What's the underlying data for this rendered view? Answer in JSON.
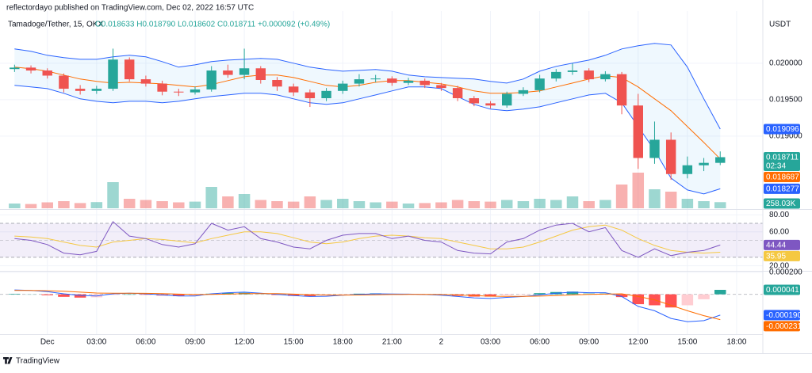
{
  "header": {
    "publisher": "reflectordayo published on TradingView.com, Dec 02, 2022 16:57 UTC",
    "symbol": "Tamadoge/Tether, 15, OKX",
    "ohlc": "O0.018633 H0.018790 L0.018602 C0.018711 +0.000092 (+0.49%)"
  },
  "footer": "TradingView",
  "chart_data": [
    {
      "type": "candlestick",
      "axis_label": "USDT",
      "xlim": [
        -0.5,
        45.5
      ],
      "xticks": [
        {
          "value": 2,
          "label": "Dec"
        },
        {
          "value": 5,
          "label": "03:00"
        },
        {
          "value": 8,
          "label": "06:00"
        },
        {
          "value": 11,
          "label": "09:00"
        },
        {
          "value": 14,
          "label": "12:00"
        },
        {
          "value": 17,
          "label": "15:00"
        },
        {
          "value": 20,
          "label": "18:00"
        },
        {
          "value": 23,
          "label": "21:00"
        },
        {
          "value": 26,
          "label": "2"
        },
        {
          "value": 29,
          "label": "03:00"
        },
        {
          "value": 32,
          "label": "06:00"
        },
        {
          "value": 35,
          "label": "09:00"
        },
        {
          "value": 38,
          "label": "12:00"
        },
        {
          "value": 41,
          "label": "15:00"
        },
        {
          "value": 44,
          "label": "18:00"
        }
      ],
      "ylim": [
        0.01801,
        0.02065
      ],
      "yticks": [
        {
          "value": 0.02,
          "label": "0.020000"
        },
        {
          "value": 0.0195,
          "label": "0.019500"
        },
        {
          "value": 0.019,
          "label": "0.019000"
        }
      ],
      "up_color": "#26a69a",
      "down_color": "#ef5350",
      "countdown": "02:34",
      "open": [
        0.01992,
        0.01994,
        0.0199,
        0.01983,
        0.01965,
        0.01962,
        0.01965,
        0.02005,
        0.01978,
        0.01972,
        0.01961,
        0.0196,
        0.01964,
        0.0199,
        0.01984,
        0.01993,
        0.01977,
        0.01968,
        0.0196,
        0.01952,
        0.01962,
        0.01972,
        0.01978,
        0.01979,
        0.01973,
        0.01976,
        0.0197,
        0.01966,
        0.01952,
        0.01945,
        0.01942,
        0.01958,
        0.01963,
        0.01979,
        0.01988,
        0.0199,
        0.01978,
        0.01985,
        0.01942,
        0.0187,
        0.01895,
        0.01848,
        0.0186,
        0.018633
      ],
      "high": [
        0.01998,
        0.01997,
        0.01993,
        0.01986,
        0.0197,
        0.01969,
        0.0202,
        0.02008,
        0.01983,
        0.01976,
        0.01965,
        0.01968,
        0.01996,
        0.01998,
        0.0202,
        0.01996,
        0.01981,
        0.01972,
        0.01964,
        0.01966,
        0.01976,
        0.01985,
        0.01984,
        0.01982,
        0.0198,
        0.01979,
        0.01973,
        0.01969,
        0.01955,
        0.01948,
        0.01961,
        0.01967,
        0.01984,
        0.01992,
        0.02,
        0.01993,
        0.01989,
        0.01988,
        0.01958,
        0.0192,
        0.01905,
        0.01872,
        0.0187,
        0.01879
      ],
      "low": [
        0.01988,
        0.01986,
        0.01979,
        0.0196,
        0.01957,
        0.01958,
        0.01962,
        0.01975,
        0.01968,
        0.01956,
        0.01955,
        0.01957,
        0.01961,
        0.0198,
        0.01978,
        0.01972,
        0.01962,
        0.01955,
        0.0194,
        0.01948,
        0.01958,
        0.01968,
        0.01974,
        0.01969,
        0.0197,
        0.01966,
        0.01962,
        0.01948,
        0.01941,
        0.01938,
        0.01939,
        0.01955,
        0.0196,
        0.01975,
        0.01984,
        0.01974,
        0.01975,
        0.0193,
        0.01855,
        0.01862,
        0.0184,
        0.01842,
        0.01852,
        0.018602
      ],
      "close": [
        0.01994,
        0.0199,
        0.01983,
        0.01965,
        0.01962,
        0.01965,
        0.02005,
        0.01978,
        0.01972,
        0.01961,
        0.0196,
        0.01964,
        0.0199,
        0.01984,
        0.01993,
        0.01977,
        0.01968,
        0.0196,
        0.01952,
        0.01962,
        0.01972,
        0.01978,
        0.01979,
        0.01973,
        0.01976,
        0.0197,
        0.01966,
        0.01952,
        0.01945,
        0.01942,
        0.01958,
        0.01963,
        0.01979,
        0.01988,
        0.0199,
        0.01978,
        0.01985,
        0.01942,
        0.0187,
        0.01895,
        0.01848,
        0.0186,
        0.018633,
        0.018711
      ],
      "bands": {
        "line_color": "#2962ff",
        "basis_color": "#ff6d00",
        "fill": "#2196f3",
        "upper": [
          0.020196,
          0.020163,
          0.020109,
          0.020076,
          0.020054,
          0.020054,
          0.020087,
          0.020109,
          0.020087,
          0.020022,
          0.019946,
          0.019978,
          0.020022,
          0.020043,
          0.020054,
          0.020065,
          0.020054,
          0.02,
          0.019946,
          0.019913,
          0.019891,
          0.019902,
          0.019913,
          0.019891,
          0.019837,
          0.019815,
          0.019804,
          0.019793,
          0.019783,
          0.01975,
          0.019728,
          0.019783,
          0.019891,
          0.019957,
          0.02,
          0.020043,
          0.020109,
          0.020196,
          0.020239,
          0.020272,
          0.02025,
          0.019946,
          0.019511,
          0.019096
        ],
        "basis": [
          0.019946,
          0.019924,
          0.019891,
          0.019837,
          0.019783,
          0.01975,
          0.019728,
          0.019739,
          0.019728,
          0.019717,
          0.019696,
          0.019674,
          0.019707,
          0.019761,
          0.019815,
          0.019837,
          0.019837,
          0.019804,
          0.01975,
          0.019696,
          0.019674,
          0.019696,
          0.019739,
          0.019761,
          0.019761,
          0.019739,
          0.019717,
          0.019674,
          0.01962,
          0.019587,
          0.019587,
          0.019598,
          0.01962,
          0.019674,
          0.019728,
          0.019783,
          0.019826,
          0.019804,
          0.019674,
          0.019511,
          0.019348,
          0.01913,
          0.018913,
          0.018687
        ],
        "lower": [
          0.019696,
          0.019674,
          0.019652,
          0.019587,
          0.019511,
          0.019478,
          0.019457,
          0.019478,
          0.019478,
          0.019457,
          0.019478,
          0.019511,
          0.019543,
          0.019565,
          0.019587,
          0.019587,
          0.019565,
          0.019511,
          0.019457,
          0.019435,
          0.019457,
          0.019511,
          0.019565,
          0.01962,
          0.019674,
          0.019674,
          0.019652,
          0.019543,
          0.019435,
          0.01937,
          0.019348,
          0.01937,
          0.019402,
          0.019457,
          0.019511,
          0.019565,
          0.019587,
          0.019457,
          0.01913,
          0.018804,
          0.018424,
          0.018261,
          0.018207,
          0.018277
        ]
      },
      "volume": {
        "vlim": [
          0,
          1600
        ],
        "last_label": "258.03K",
        "values": [
          200,
          180,
          250,
          300,
          220,
          260,
          1100,
          400,
          350,
          300,
          250,
          280,
          900,
          500,
          600,
          350,
          300,
          280,
          500,
          350,
          400,
          300,
          250,
          280,
          200,
          220,
          250,
          350,
          300,
          280,
          350,
          300,
          400,
          350,
          500,
          300,
          350,
          1000,
          1500,
          800,
          700,
          400,
          300,
          258.03
        ]
      }
    },
    {
      "type": "line",
      "ylim": [
        15,
        84
      ],
      "yticks": [
        {
          "value": 80,
          "label": "80.00"
        },
        {
          "value": 60,
          "label": "60.00"
        },
        {
          "value": 20,
          "label": "20.00"
        }
      ],
      "levels": [
        70,
        50,
        30
      ],
      "level_fill": "#7e57c2",
      "series": [
        {
          "color": "#7e57c2",
          "values": [
            52,
            50,
            45,
            35,
            33,
            37,
            72,
            55,
            52,
            45,
            42,
            46,
            70,
            62,
            66,
            52,
            48,
            42,
            40,
            50,
            56,
            58,
            58,
            52,
            55,
            50,
            48,
            38,
            35,
            34,
            48,
            52,
            62,
            68,
            70,
            60,
            65,
            38,
            30,
            40,
            32,
            36,
            38,
            44.44
          ]
        },
        {
          "color": "#f5c842",
          "values": [
            55,
            54,
            52,
            48,
            44,
            42,
            48,
            50,
            52,
            51,
            49,
            47,
            52,
            56,
            60,
            60,
            58,
            53,
            48,
            46,
            48,
            52,
            55,
            56,
            55,
            53,
            52,
            48,
            44,
            40,
            40,
            42,
            48,
            55,
            62,
            66,
            68,
            62,
            52,
            44,
            38,
            36,
            35,
            35.95
          ]
        }
      ]
    },
    {
      "type": "macd",
      "ylim": [
        -0.000364,
        0.0002
      ],
      "yticks": [
        {
          "value": 0.0002,
          "label": "0.000200"
        }
      ],
      "histogram": [
        5e-06,
        0,
        -8e-06,
        -2.3e-05,
        -3e-05,
        -2.7e-05,
        -5e-06,
        0,
        -4e-06,
        -1.1e-05,
        -1.7e-05,
        -1.3e-05,
        6e-06,
        1.3e-05,
        1.4e-05,
        3e-06,
        -6e-06,
        -1.4e-05,
        -1.7e-05,
        -1.2e-05,
        -1e-06,
        6e-06,
        9e-06,
        5e-06,
        3e-06,
        -1e-06,
        -6e-06,
        -1.4e-05,
        -2.1e-05,
        -2.1e-05,
        -9e-06,
        -1e-06,
        1.1e-05,
        2.1e-05,
        2.5e-05,
        1.6e-05,
        1.3e-05,
        -2.5e-05,
        -9e-05,
        -0.0001,
        -0.00012,
        -0.0001,
        -4.5e-05,
        4.1e-05
      ],
      "hist_colors": [
        "#26a69a",
        "#b2dfdb",
        "#ff5252",
        "#ffcdd2"
      ],
      "series": [
        {
          "color": "#2962ff",
          "last_label": "-0.000190",
          "values": [
            4e-05,
            3.5e-05,
            2.5e-05,
            5e-06,
            -1e-05,
            -1.5e-05,
            5e-06,
            1e-05,
            5e-06,
            -5e-06,
            -1.5e-05,
            -1.5e-05,
            5e-06,
            1.5e-05,
            2e-05,
            1e-05,
            0,
            -1.2e-05,
            -2e-05,
            -1.8e-05,
            -8e-06,
            0,
            5e-06,
            3e-06,
            2e-06,
            -2e-06,
            -8e-06,
            -2e-05,
            -3.2e-05,
            -3.8e-05,
            -2.8e-05,
            -2e-05,
            -5e-06,
            1e-05,
            2e-05,
            1.5e-05,
            1.5e-05,
            -2e-05,
            -0.00011,
            -0.00015,
            -0.00022,
            -0.00025,
            -0.00024,
            -0.00019
          ]
        },
        {
          "color": "#ff6d00",
          "values": [
            3.5e-05,
            3.5e-05,
            3.3e-05,
            2.8e-05,
            2e-05,
            1.2e-05,
            1e-05,
            1e-05,
            9e-06,
            6e-06,
            2e-06,
            -2e-06,
            -1e-06,
            2e-06,
            6e-06,
            7e-06,
            6e-06,
            2e-06,
            -3e-06,
            -6e-06,
            -7e-06,
            -6e-06,
            -4e-06,
            -2e-06,
            -1e-06,
            -1e-06,
            -2e-06,
            -6e-06,
            -1.1e-05,
            -1.7e-05,
            -1.9e-05,
            -1.9e-05,
            -1.6e-05,
            -1.1e-05,
            -5e-06,
            -1e-06,
            2e-06,
            5e-06,
            -2e-05,
            -5e-05,
            -0.0001,
            -0.00015,
            -0.000195,
            -0.000231
          ]
        }
      ]
    }
  ]
}
